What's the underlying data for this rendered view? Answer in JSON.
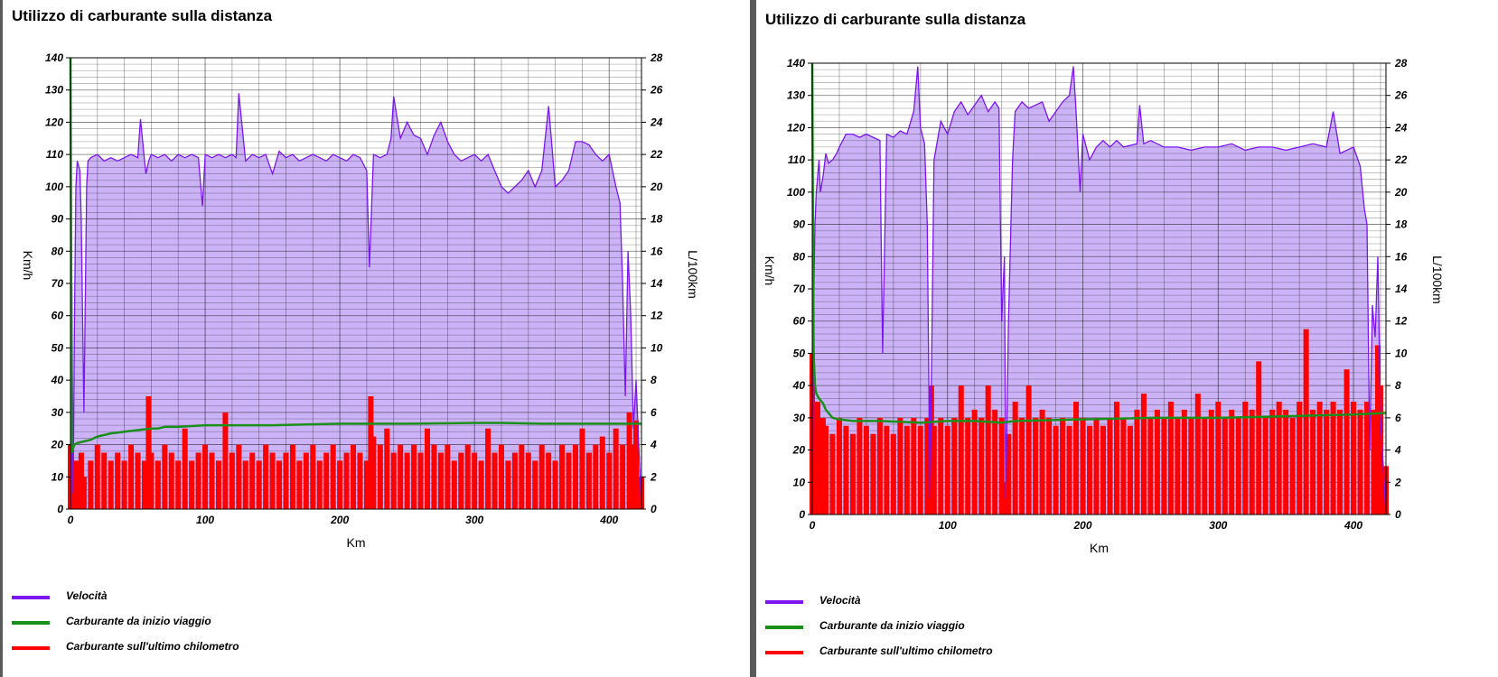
{
  "chart_data": [
    {
      "type": "line",
      "title": "Utilizzo di carburante sulla distanza",
      "xlabel": "Km",
      "ylabel_left": "Km/h",
      "ylabel_right": "L/100km",
      "xlim": [
        0,
        424
      ],
      "ylim_left": [
        0,
        140
      ],
      "ylim_right": [
        0,
        28
      ],
      "xticks": [
        0,
        100,
        200,
        300,
        400
      ],
      "yticks_left": [
        0,
        10,
        20,
        30,
        40,
        50,
        60,
        70,
        80,
        90,
        100,
        110,
        120,
        130,
        140
      ],
      "yticks_right": [
        0,
        2,
        4,
        6,
        8,
        10,
        12,
        14,
        16,
        18,
        20,
        22,
        24,
        26,
        28
      ],
      "grid": true,
      "legend_placement": "bottom-left",
      "series": [
        {
          "name": "Velocità",
          "axis": "left",
          "color": "#7b16f0",
          "x": [
            0,
            1,
            2,
            3,
            4,
            5,
            7,
            8,
            10,
            12,
            13,
            15,
            20,
            25,
            30,
            35,
            40,
            45,
            50,
            52,
            55,
            56,
            58,
            60,
            65,
            70,
            75,
            80,
            85,
            90,
            95,
            98,
            100,
            105,
            110,
            115,
            120,
            123,
            125,
            130,
            135,
            140,
            145,
            150,
            155,
            160,
            165,
            170,
            175,
            180,
            185,
            190,
            195,
            200,
            205,
            210,
            215,
            220,
            222,
            225,
            230,
            235,
            238,
            240,
            245,
            250,
            255,
            260,
            265,
            270,
            275,
            280,
            285,
            290,
            295,
            300,
            305,
            310,
            315,
            320,
            325,
            330,
            335,
            340,
            345,
            350,
            355,
            360,
            365,
            370,
            375,
            380,
            385,
            390,
            395,
            400,
            405,
            408,
            410,
            412,
            414,
            416,
            418,
            420,
            422,
            424
          ],
          "y": [
            0,
            70,
            5,
            60,
            100,
            108,
            105,
            90,
            30,
            100,
            108,
            109,
            110,
            108,
            109,
            108,
            109,
            110,
            109,
            121,
            108,
            104,
            108,
            110,
            109,
            110,
            108,
            110,
            109,
            110,
            109,
            94,
            110,
            109,
            110,
            109,
            110,
            109,
            129,
            108,
            110,
            109,
            110,
            104,
            111,
            109,
            110,
            108,
            109,
            110,
            109,
            108,
            110,
            109,
            108,
            110,
            109,
            105,
            75,
            110,
            109,
            110,
            115,
            128,
            115,
            120,
            116,
            115,
            110,
            116,
            120,
            114,
            110,
            108,
            109,
            110,
            108,
            110,
            105,
            100,
            98,
            100,
            102,
            105,
            100,
            105,
            125,
            100,
            102,
            105,
            114,
            114,
            113,
            110,
            108,
            110,
            100,
            95,
            70,
            35,
            80,
            60,
            25,
            40,
            20,
            0
          ]
        },
        {
          "name": "Carburante da inizio viaggio",
          "axis": "right",
          "color": "#1a8f1a",
          "x": [
            0,
            1,
            2,
            3,
            5,
            10,
            15,
            20,
            25,
            30,
            40,
            50,
            60,
            65,
            70,
            80,
            100,
            120,
            150,
            200,
            250,
            300,
            320,
            350,
            400,
            424
          ],
          "y": [
            28,
            3.5,
            3.8,
            4.0,
            4.1,
            4.2,
            4.3,
            4.5,
            4.6,
            4.7,
            4.8,
            4.9,
            5.0,
            5.0,
            5.1,
            5.1,
            5.2,
            5.2,
            5.2,
            5.3,
            5.3,
            5.35,
            5.35,
            5.3,
            5.3,
            5.3
          ]
        },
        {
          "name": "Carburante sull'ultimo chilometro",
          "axis": "right",
          "color": "#ff0000",
          "x": [
            0,
            2,
            4,
            6,
            8,
            10,
            15,
            20,
            25,
            30,
            35,
            40,
            45,
            50,
            55,
            58,
            60,
            65,
            70,
            75,
            80,
            85,
            90,
            95,
            100,
            105,
            110,
            115,
            120,
            125,
            130,
            135,
            140,
            145,
            150,
            155,
            160,
            165,
            170,
            175,
            180,
            185,
            190,
            195,
            200,
            205,
            210,
            215,
            220,
            223,
            225,
            230,
            235,
            240,
            245,
            250,
            255,
            260,
            265,
            270,
            275,
            280,
            285,
            290,
            295,
            300,
            305,
            310,
            315,
            320,
            325,
            330,
            335,
            340,
            345,
            350,
            355,
            360,
            365,
            370,
            375,
            380,
            385,
            390,
            395,
            400,
            405,
            410,
            415,
            418,
            420,
            424
          ],
          "y": [
            4,
            2,
            3,
            2.5,
            3.5,
            2,
            3,
            4,
            3.5,
            3,
            3.5,
            3,
            4,
            3.5,
            3,
            7,
            3.5,
            3,
            4,
            3.5,
            3,
            5,
            3,
            3.5,
            4,
            3.5,
            3,
            6,
            3.5,
            4,
            3,
            3.5,
            3,
            4,
            3.5,
            3,
            3.5,
            4,
            3,
            3.5,
            4,
            3,
            3.5,
            4,
            3,
            3.5,
            4,
            3.5,
            3,
            7,
            4.5,
            4,
            5,
            3.5,
            4,
            3.5,
            4,
            3.5,
            5,
            4,
            3.5,
            4,
            3,
            3.5,
            4,
            3.5,
            3,
            5,
            3.5,
            4,
            3,
            3.5,
            4,
            3.5,
            3,
            4,
            3.5,
            3,
            4,
            3.5,
            4,
            5,
            3.5,
            4,
            4.5,
            3.5,
            5,
            4,
            6,
            4,
            5.5,
            2
          ]
        }
      ]
    },
    {
      "type": "line",
      "title": "Utilizzo di carburante sulla distanza",
      "xlabel": "Km",
      "ylabel_left": "Km/h",
      "ylabel_right": "L/100km",
      "xlim": [
        0,
        424
      ],
      "ylim_left": [
        0,
        140
      ],
      "ylim_right": [
        0,
        28
      ],
      "xticks": [
        0,
        100,
        200,
        300,
        400
      ],
      "yticks_left": [
        0,
        10,
        20,
        30,
        40,
        50,
        60,
        70,
        80,
        90,
        100,
        110,
        120,
        130,
        140
      ],
      "yticks_right": [
        0,
        2,
        4,
        6,
        8,
        10,
        12,
        14,
        16,
        18,
        20,
        22,
        24,
        26,
        28
      ],
      "grid": true,
      "legend_placement": "bottom-left",
      "series": [
        {
          "name": "Velocità",
          "axis": "left",
          "color": "#7b16f0",
          "x": [
            0,
            1,
            2,
            3,
            4,
            5,
            6,
            8,
            10,
            12,
            15,
            18,
            20,
            25,
            30,
            35,
            40,
            45,
            50,
            52,
            55,
            60,
            65,
            70,
            75,
            78,
            80,
            83,
            85,
            87,
            90,
            95,
            100,
            105,
            110,
            115,
            120,
            125,
            130,
            135,
            138,
            140,
            142,
            143,
            145,
            148,
            150,
            155,
            160,
            165,
            170,
            175,
            180,
            185,
            190,
            193,
            195,
            198,
            200,
            205,
            210,
            215,
            220,
            225,
            230,
            240,
            242,
            245,
            250,
            260,
            270,
            280,
            290,
            300,
            310,
            320,
            330,
            340,
            350,
            360,
            370,
            380,
            385,
            390,
            395,
            400,
            405,
            408,
            410,
            412,
            414,
            416,
            418,
            420,
            424
          ],
          "y": [
            0,
            65,
            90,
            100,
            105,
            110,
            100,
            105,
            112,
            109,
            110,
            112,
            114,
            118,
            118,
            117,
            118,
            117,
            116,
            50,
            118,
            117,
            119,
            118,
            125,
            139,
            120,
            115,
            90,
            5,
            110,
            122,
            118,
            125,
            128,
            124,
            127,
            130,
            125,
            128,
            126,
            60,
            80,
            5,
            60,
            110,
            125,
            128,
            126,
            127,
            128,
            122,
            125,
            128,
            130,
            139,
            125,
            100,
            118,
            110,
            114,
            116,
            114,
            116,
            114,
            115,
            127,
            115,
            116,
            114,
            114,
            113,
            114,
            114,
            115,
            113,
            114,
            114,
            113,
            114,
            115,
            114,
            125,
            112,
            113,
            114,
            108,
            95,
            90,
            20,
            65,
            55,
            80,
            30,
            0
          ]
        },
        {
          "name": "Carburante da inizio viaggio",
          "axis": "right",
          "color": "#1a8f1a",
          "x": [
            0,
            1,
            2,
            3,
            5,
            8,
            10,
            15,
            20,
            30,
            50,
            80,
            100,
            120,
            140,
            150,
            200,
            250,
            300,
            350,
            400,
            424
          ],
          "y": [
            28,
            10,
            8,
            7.5,
            7.2,
            6.9,
            6.5,
            6.0,
            5.9,
            5.8,
            5.8,
            5.7,
            5.8,
            5.8,
            5.7,
            5.8,
            5.9,
            6.0,
            6.0,
            6.1,
            6.2,
            6.3
          ]
        },
        {
          "name": "Carburante sull'ultimo chilometro",
          "axis": "right",
          "color": "#ff0000",
          "x": [
            0,
            2,
            4,
            6,
            8,
            10,
            15,
            20,
            25,
            30,
            35,
            40,
            45,
            50,
            55,
            60,
            65,
            70,
            75,
            80,
            85,
            88,
            90,
            95,
            100,
            105,
            110,
            115,
            120,
            125,
            130,
            135,
            140,
            143,
            145,
            150,
            155,
            160,
            165,
            170,
            175,
            180,
            185,
            190,
            195,
            200,
            205,
            210,
            215,
            220,
            225,
            230,
            235,
            240,
            245,
            250,
            255,
            260,
            265,
            270,
            275,
            280,
            285,
            290,
            295,
            300,
            305,
            310,
            315,
            320,
            325,
            330,
            335,
            340,
            345,
            350,
            355,
            360,
            365,
            370,
            375,
            380,
            385,
            390,
            395,
            400,
            405,
            410,
            415,
            418,
            420,
            424
          ],
          "y": [
            10,
            6,
            7,
            5,
            6,
            5.5,
            5,
            6,
            5.5,
            5,
            6,
            5.5,
            5,
            6,
            5.5,
            5,
            6,
            5.5,
            6,
            5.5,
            6,
            8,
            5.5,
            6,
            5.5,
            6,
            8,
            6,
            6.5,
            6,
            8,
            6.5,
            6,
            2,
            5,
            7,
            6,
            8,
            6,
            6.5,
            6,
            5.5,
            6,
            5.5,
            7,
            6,
            5.5,
            6,
            5.5,
            6,
            7,
            6,
            5.5,
            6.5,
            7.5,
            6,
            6.5,
            6,
            7,
            6,
            6.5,
            6,
            7.5,
            6,
            6.5,
            7,
            6,
            6.5,
            6,
            7,
            6.5,
            9.5,
            6,
            6.5,
            7,
            6.5,
            6,
            7,
            11.5,
            6.5,
            7,
            6.5,
            7,
            6.5,
            9,
            7,
            6.5,
            7,
            6.5,
            10.5,
            8,
            3
          ]
        }
      ]
    }
  ]
}
